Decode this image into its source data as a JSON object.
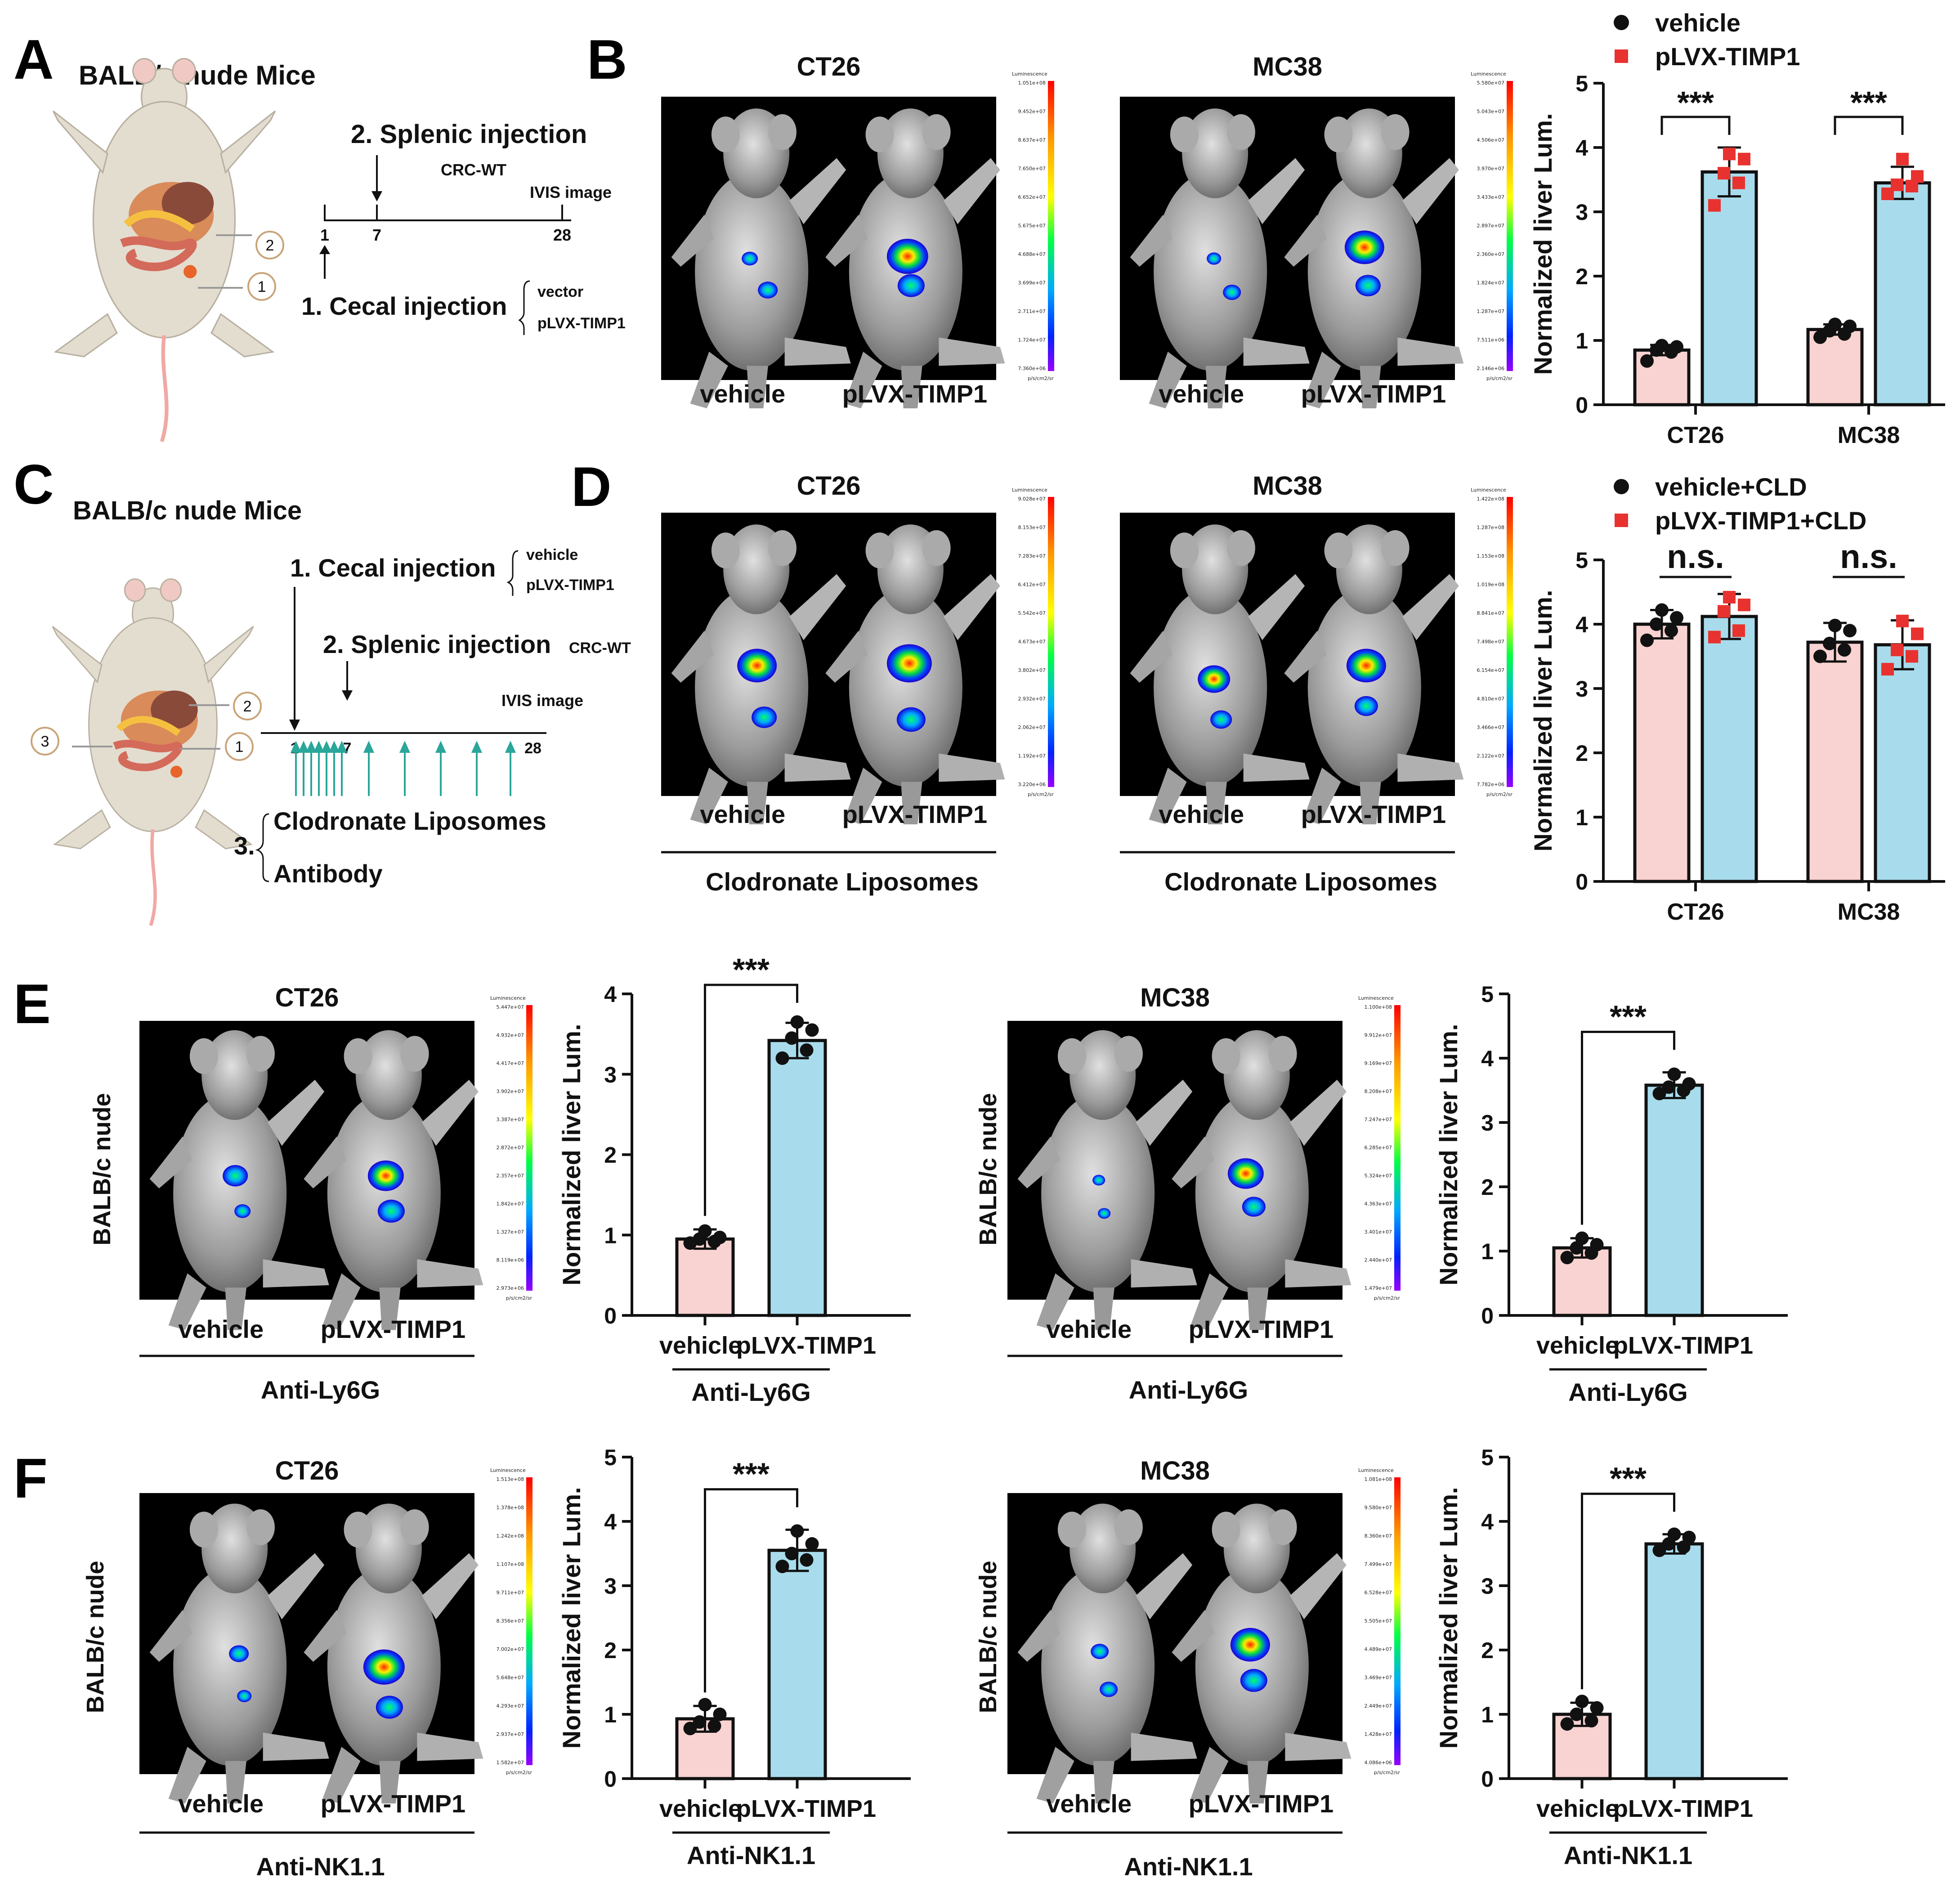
{
  "panels": {
    "A": {
      "letter": "A",
      "title": "BALB/c nude Mice",
      "step_splenic": "2. Splenic injection",
      "crc": "CRC-WT",
      "ivis": "IVIS image",
      "ticks": [
        "1",
        "7",
        "28"
      ],
      "step_cecal": "1. Cecal injection",
      "groups": [
        "vector",
        "pLVX-TIMP1"
      ],
      "circles": [
        "2",
        "1"
      ]
    },
    "B": {
      "letter": "B",
      "images": [
        {
          "title": "CT26",
          "labels": [
            "vehicle",
            "pLVX-TIMP1"
          ],
          "scale_ticks": [
            "1.051e+08",
            "9.452e+07",
            "8.637e+07",
            "7.650e+07",
            "6.652e+07",
            "5.675e+07",
            "4.688e+07",
            "3.699e+07",
            "2.711e+07",
            "1.724e+07",
            "7.360e+06"
          ]
        },
        {
          "title": "MC38",
          "labels": [
            "vehicle",
            "pLVX-TIMP1"
          ],
          "scale_ticks": [
            "5.580e+07",
            "5.043e+07",
            "4.506e+07",
            "3.970e+07",
            "3.433e+07",
            "2.897e+07",
            "2.360e+07",
            "1.824e+07",
            "1.287e+07",
            "7.511e+06",
            "2.146e+06"
          ]
        }
      ]
    },
    "C": {
      "letter": "C",
      "title": "BALB/c nude Mice",
      "step_cecal": "1. Cecal injection",
      "groups": [
        "vehicle",
        "pLVX-TIMP1"
      ],
      "step_splenic": "2. Splenic injection",
      "crc": "CRC-WT",
      "ivis": "IVIS image",
      "ticks": [
        "1",
        "7",
        "28"
      ],
      "step3_num": "3.",
      "step3_items": [
        "Clodronate Liposomes",
        "Antibody"
      ],
      "circles": [
        "3",
        "2",
        "1"
      ]
    },
    "D": {
      "letter": "D",
      "images": [
        {
          "title": "CT26",
          "labels": [
            "vehicle",
            "pLVX-TIMP1"
          ],
          "group_label": "Clodronate Liposomes",
          "scale_ticks": [
            "9.028e+07",
            "8.153e+07",
            "7.283e+07",
            "6.412e+07",
            "5.542e+07",
            "4.673e+07",
            "3.802e+07",
            "2.932e+07",
            "2.062e+07",
            "1.192e+07",
            "3.220e+06"
          ]
        },
        {
          "title": "MC38",
          "labels": [
            "vehicle",
            "pLVX-TIMP1"
          ],
          "group_label": "Clodronate Liposomes",
          "scale_ticks": [
            "1.422e+08",
            "1.287e+08",
            "1.153e+08",
            "1.019e+08",
            "8.841e+07",
            "7.498e+07",
            "6.154e+07",
            "4.810e+07",
            "3.466e+07",
            "2.122e+07",
            "7.782e+06"
          ]
        }
      ]
    },
    "E": {
      "letter": "E",
      "side_label": "BALB/c nude",
      "images": [
        {
          "title": "CT26",
          "labels": [
            "vehicle",
            "pLVX-TIMP1"
          ],
          "group_label": "Anti-Ly6G",
          "scale_ticks": [
            "5.447e+07",
            "4.932e+07",
            "4.417e+07",
            "3.902e+07",
            "3.387e+07",
            "2.872e+07",
            "2.357e+07",
            "1.842e+07",
            "1.327e+07",
            "8.119e+06",
            "2.973e+06"
          ]
        },
        {
          "title": "MC38",
          "labels": [
            "vehicle",
            "pLVX-TIMP1"
          ],
          "group_label": "Anti-Ly6G",
          "scale_ticks": [
            "1.100e+08",
            "9.912e+07",
            "9.169e+07",
            "8.208e+07",
            "7.247e+07",
            "6.285e+07",
            "5.324e+07",
            "4.363e+07",
            "3.401e+07",
            "2.440e+07",
            "1.479e+07"
          ]
        }
      ]
    },
    "F": {
      "letter": "F",
      "side_label": "BALB/c nude",
      "images": [
        {
          "title": "CT26",
          "labels": [
            "vehicle",
            "pLVX-TIMP1"
          ],
          "group_label": "Anti-NK1.1",
          "scale_ticks": [
            "1.513e+08",
            "1.378e+08",
            "1.242e+08",
            "1.107e+08",
            "9.711e+07",
            "8.356e+07",
            "7.002e+07",
            "5.648e+07",
            "4.293e+07",
            "2.937e+07",
            "1.582e+07"
          ]
        },
        {
          "title": "MC38",
          "labels": [
            "vehicle",
            "pLVX-TIMP1"
          ],
          "group_label": "Anti-NK1.1",
          "scale_ticks": [
            "1.081e+08",
            "9.580e+07",
            "8.360e+07",
            "7.499e+07",
            "6.528e+07",
            "5.505e+07",
            "4.489e+07",
            "3.469e+07",
            "2.449e+07",
            "1.428e+07",
            "4.086e+06"
          ]
        }
      ]
    }
  },
  "scalebar_header": "Luminescence",
  "scalebar_units": "p/s/cm2/sr",
  "colors": {
    "vehicle_bar": "#f9d3d1",
    "timp_bar": "#a8dcec",
    "vehicle_dot": "#111111",
    "timp_dot": "#e8322f"
  },
  "chart_data": [
    {
      "id": "B-bar",
      "type": "bar",
      "categories": [
        "CT26",
        "MC38"
      ],
      "series": [
        {
          "name": "vehicle",
          "values": [
            0.85,
            1.17
          ],
          "err": [
            0.08,
            0.08
          ],
          "points": [
            [
              0.68,
              0.82,
              0.85,
              0.9,
              0.92
            ],
            [
              1.05,
              1.1,
              1.15,
              1.22,
              1.25
            ]
          ]
        },
        {
          "name": "pLVX-TIMP1",
          "values": [
            3.62,
            3.45
          ],
          "err": [
            0.38,
            0.25
          ],
          "points": [
            [
              3.1,
              3.45,
              3.6,
              3.82,
              3.9
            ],
            [
              3.28,
              3.4,
              3.42,
              3.55,
              3.82
            ]
          ]
        }
      ],
      "ylabel": "Normalized liver Lum.",
      "ylim": [
        0,
        5
      ],
      "yticks": [
        0,
        1,
        2,
        3,
        4,
        5
      ],
      "significance": [
        "***",
        "***"
      ],
      "legend": [
        "vehicle",
        "pLVX-TIMP1"
      ]
    },
    {
      "id": "D-bar",
      "type": "bar",
      "categories": [
        "CT26",
        "MC38"
      ],
      "series": [
        {
          "name": "vehicle+CLD",
          "values": [
            4.0,
            3.72
          ],
          "err": [
            0.22,
            0.3
          ],
          "points": [
            [
              3.75,
              3.9,
              4.0,
              4.1,
              4.22
            ],
            [
              3.5,
              3.6,
              3.7,
              3.9,
              3.98
            ]
          ]
        },
        {
          "name": "pLVX-TIMP1+CLD",
          "values": [
            4.12,
            3.68
          ],
          "err": [
            0.35,
            0.38
          ],
          "points": [
            [
              3.8,
              3.9,
              4.2,
              4.3,
              4.42
            ],
            [
              3.3,
              3.5,
              3.6,
              3.85,
              4.05
            ]
          ]
        }
      ],
      "ylabel": "Normalized liver Lum.",
      "ylim": [
        0,
        5
      ],
      "yticks": [
        0,
        1,
        2,
        3,
        4,
        5
      ],
      "significance": [
        "n.s.",
        "n.s."
      ],
      "legend": [
        "vehicle+CLD",
        "pLVX-TIMP1+CLD"
      ]
    },
    {
      "id": "E-CT26-bar",
      "type": "bar",
      "categories": [
        "vehicle",
        "pLVX-TIMP1"
      ],
      "values": [
        0.95,
        3.42
      ],
      "err": [
        0.12,
        0.22
      ],
      "points": [
        [
          0.9,
          0.92,
          0.95,
          0.97,
          1.05
        ],
        [
          3.2,
          3.3,
          3.45,
          3.55,
          3.65
        ]
      ],
      "ylabel": "Normalized liver Lum.",
      "ylim": [
        0,
        4
      ],
      "yticks": [
        0,
        1,
        2,
        3,
        4
      ],
      "significance": "***",
      "group_label": "Anti-Ly6G"
    },
    {
      "id": "E-MC38-bar",
      "type": "bar",
      "categories": [
        "vehicle",
        "pLVX-TIMP1"
      ],
      "values": [
        1.05,
        3.58
      ],
      "err": [
        0.15,
        0.2
      ],
      "points": [
        [
          0.9,
          0.97,
          1.05,
          1.1,
          1.2
        ],
        [
          3.45,
          3.5,
          3.55,
          3.6,
          3.75
        ]
      ],
      "ylabel": "Normalized liver Lum.",
      "ylim": [
        0,
        5
      ],
      "yticks": [
        0,
        1,
        2,
        3,
        4,
        5
      ],
      "significance": "***",
      "group_label": "Anti-Ly6G"
    },
    {
      "id": "F-CT26-bar",
      "type": "bar",
      "categories": [
        "vehicle",
        "pLVX-TIMP1"
      ],
      "values": [
        0.93,
        3.55
      ],
      "err": [
        0.2,
        0.32
      ],
      "points": [
        [
          0.78,
          0.82,
          0.88,
          1.0,
          1.15
        ],
        [
          3.3,
          3.4,
          3.5,
          3.65,
          3.85
        ]
      ],
      "ylabel": "Normalized liver Lum.",
      "ylim": [
        0,
        5
      ],
      "yticks": [
        0,
        1,
        2,
        3,
        4,
        5
      ],
      "significance": "***",
      "group_label": "Anti-NK1.1"
    },
    {
      "id": "F-MC38-bar",
      "type": "bar",
      "categories": [
        "vehicle",
        "pLVX-TIMP1"
      ],
      "values": [
        1.0,
        3.65
      ],
      "err": [
        0.18,
        0.15
      ],
      "points": [
        [
          0.85,
          0.9,
          1.0,
          1.1,
          1.2
        ],
        [
          3.55,
          3.6,
          3.65,
          3.75,
          3.8
        ]
      ],
      "ylabel": "Normalized liver Lum.",
      "ylim": [
        0,
        5
      ],
      "yticks": [
        0,
        1,
        2,
        3,
        4,
        5
      ],
      "significance": "***",
      "group_label": "Anti-NK1.1"
    }
  ]
}
